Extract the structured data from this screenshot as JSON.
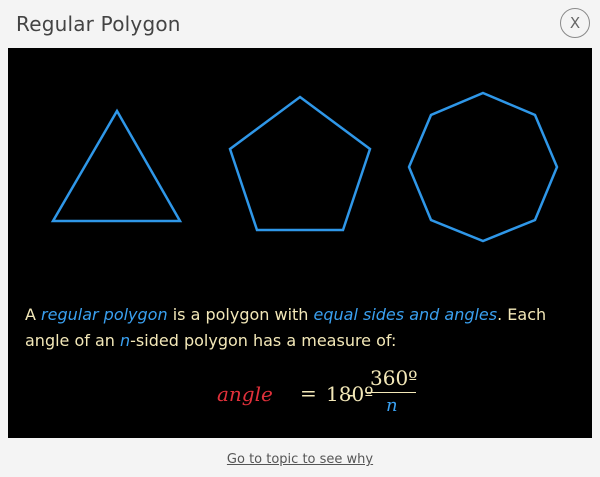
{
  "dialog": {
    "title": "Regular Polygon",
    "close_label": "X"
  },
  "description": {
    "part1": "A ",
    "term": "regular polygon",
    "part2": " is a polygon with ",
    "emphasis": "equal sides and angles",
    "part3": ". Each angle of an ",
    "variable": "n",
    "part4": "-sided polygon has a measure of:"
  },
  "formula": {
    "lhs": "angle",
    "equals": "=",
    "constant": "180º",
    "minus": "-",
    "numerator": "360º",
    "denominator": "n"
  },
  "footer": {
    "link_label": "Go to topic to see why"
  },
  "polygons": [
    {
      "name": "triangle",
      "sides": 3
    },
    {
      "name": "pentagon",
      "sides": 5
    },
    {
      "name": "octagon",
      "sides": 8
    }
  ],
  "colors": {
    "polygon_stroke": "#2f97e8",
    "highlight": "#3aa0f0",
    "text": "#f3e8b8",
    "angle": "#e0303a",
    "panel_background": "#000000"
  }
}
